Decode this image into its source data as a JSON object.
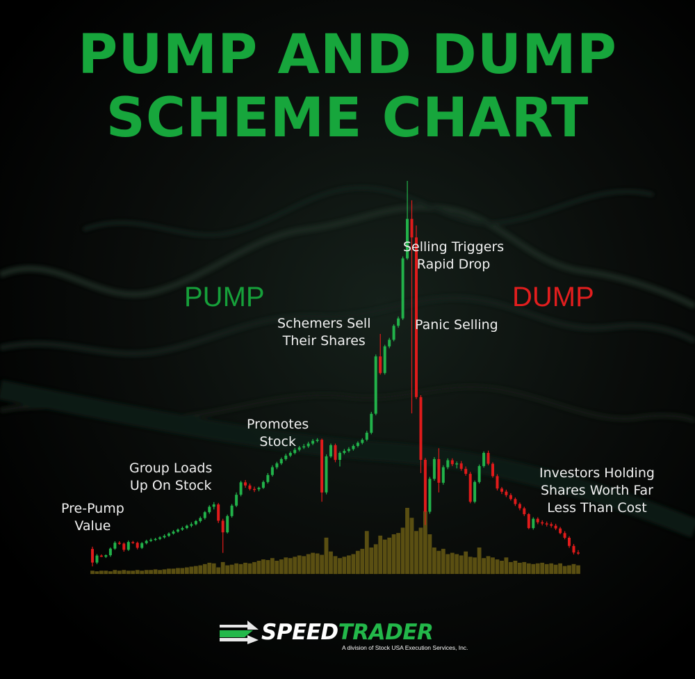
{
  "title_line1": "PUMP AND DUMP",
  "title_line2": "SCHEME CHART",
  "phase_pump": "PUMP",
  "phase_dump": "DUMP",
  "annotations": [
    {
      "line1": "Pre-Pump",
      "line2": "Value"
    },
    {
      "line1": "Group Loads",
      "line2": "Up On Stock"
    },
    {
      "line1": "Promotes",
      "line2": "Stock"
    },
    {
      "line1": "Schemers Sell",
      "line2": "Their Shares"
    },
    {
      "line1": "Selling Triggers",
      "line2": "Rapid Drop"
    },
    {
      "line1": "Panic Selling",
      "line2": ""
    },
    {
      "line1": "Investors Holding",
      "line2": "Shares Worth Far",
      "line3": "Less Than Cost"
    }
  ],
  "logo": {
    "name_part1": "SPEED",
    "name_part2": "TRADER",
    "subtitle": "A division of Stock USA Execution Services, Inc."
  },
  "colors": {
    "title": "#17a63c",
    "pump": "#16a03a",
    "dump": "#e21e1e",
    "up_candle": "#22b24a",
    "down_candle": "#e01b1b",
    "volume": "#5a4f12"
  },
  "chart_data": {
    "type": "candlestick",
    "axes_shown": false,
    "grid": false,
    "note_units": "relative price (0-100) and relative volume (0-100); no axis scale printed",
    "candles": [
      {
        "o": 5.0,
        "h": 5.6,
        "l": 0.5,
        "c": 1.5
      },
      {
        "o": 1.5,
        "h": 3.7,
        "l": 1.1,
        "c": 3.3
      },
      {
        "o": 3.3,
        "h": 3.6,
        "l": 2.9,
        "c": 3.0
      },
      {
        "o": 3.0,
        "h": 3.6,
        "l": 2.7,
        "c": 3.4
      },
      {
        "o": 3.4,
        "h": 5.4,
        "l": 3.0,
        "c": 5.1
      },
      {
        "o": 5.1,
        "h": 7.0,
        "l": 4.8,
        "c": 6.6
      },
      {
        "o": 6.6,
        "h": 7.0,
        "l": 6.1,
        "c": 6.4
      },
      {
        "o": 6.4,
        "h": 6.7,
        "l": 4.3,
        "c": 4.8
      },
      {
        "o": 4.8,
        "h": 7.2,
        "l": 4.5,
        "c": 6.8
      },
      {
        "o": 6.8,
        "h": 7.1,
        "l": 6.3,
        "c": 6.6
      },
      {
        "o": 6.6,
        "h": 6.9,
        "l": 4.9,
        "c": 5.3
      },
      {
        "o": 5.3,
        "h": 6.8,
        "l": 5.0,
        "c": 6.5
      },
      {
        "o": 6.5,
        "h": 7.4,
        "l": 6.2,
        "c": 7.1
      },
      {
        "o": 7.1,
        "h": 7.8,
        "l": 6.8,
        "c": 7.4
      },
      {
        "o": 7.4,
        "h": 7.9,
        "l": 7.1,
        "c": 7.6
      },
      {
        "o": 7.6,
        "h": 8.3,
        "l": 7.3,
        "c": 8.0
      },
      {
        "o": 8.0,
        "h": 8.8,
        "l": 7.7,
        "c": 8.4
      },
      {
        "o": 8.4,
        "h": 9.3,
        "l": 8.1,
        "c": 9.0
      },
      {
        "o": 9.0,
        "h": 9.9,
        "l": 8.7,
        "c": 9.5
      },
      {
        "o": 9.5,
        "h": 10.3,
        "l": 9.2,
        "c": 10.0
      },
      {
        "o": 10.0,
        "h": 10.8,
        "l": 9.7,
        "c": 10.4
      },
      {
        "o": 10.4,
        "h": 11.3,
        "l": 10.1,
        "c": 11.0
      },
      {
        "o": 11.0,
        "h": 11.9,
        "l": 10.6,
        "c": 11.4
      },
      {
        "o": 11.4,
        "h": 12.5,
        "l": 11.1,
        "c": 12.2
      },
      {
        "o": 12.2,
        "h": 13.4,
        "l": 11.8,
        "c": 13.0
      },
      {
        "o": 13.0,
        "h": 14.8,
        "l": 12.6,
        "c": 14.5
      },
      {
        "o": 14.5,
        "h": 16.3,
        "l": 14.1,
        "c": 15.9
      },
      {
        "o": 15.9,
        "h": 17.1,
        "l": 15.2,
        "c": 16.5
      },
      {
        "o": 16.5,
        "h": 16.9,
        "l": 11.7,
        "c": 12.3
      },
      {
        "o": 12.3,
        "h": 12.8,
        "l": 4.0,
        "c": 9.3
      },
      {
        "o": 9.3,
        "h": 13.9,
        "l": 9.0,
        "c": 13.5
      },
      {
        "o": 13.5,
        "h": 16.6,
        "l": 13.1,
        "c": 16.2
      },
      {
        "o": 16.2,
        "h": 19.6,
        "l": 15.8,
        "c": 19.0
      },
      {
        "o": 19.0,
        "h": 22.6,
        "l": 18.6,
        "c": 22.2
      },
      {
        "o": 22.2,
        "h": 22.8,
        "l": 20.8,
        "c": 21.4
      },
      {
        "o": 21.4,
        "h": 21.9,
        "l": 20.1,
        "c": 20.5
      },
      {
        "o": 20.5,
        "h": 21.1,
        "l": 19.7,
        "c": 20.4
      },
      {
        "o": 20.4,
        "h": 21.1,
        "l": 19.9,
        "c": 20.8
      },
      {
        "o": 20.8,
        "h": 22.7,
        "l": 20.5,
        "c": 22.3
      },
      {
        "o": 22.3,
        "h": 24.6,
        "l": 21.9,
        "c": 24.1
      },
      {
        "o": 24.1,
        "h": 26.6,
        "l": 23.7,
        "c": 26.1
      },
      {
        "o": 26.1,
        "h": 27.5,
        "l": 25.6,
        "c": 27.1
      },
      {
        "o": 27.1,
        "h": 28.6,
        "l": 26.7,
        "c": 28.2
      },
      {
        "o": 28.2,
        "h": 29.6,
        "l": 27.8,
        "c": 29.1
      },
      {
        "o": 29.1,
        "h": 30.2,
        "l": 28.7,
        "c": 29.8
      },
      {
        "o": 29.8,
        "h": 31.1,
        "l": 29.4,
        "c": 30.6
      },
      {
        "o": 30.6,
        "h": 31.6,
        "l": 30.2,
        "c": 31.2
      },
      {
        "o": 31.2,
        "h": 32.1,
        "l": 30.8,
        "c": 31.5
      },
      {
        "o": 31.5,
        "h": 32.7,
        "l": 31.1,
        "c": 32.2
      },
      {
        "o": 32.2,
        "h": 33.4,
        "l": 31.8,
        "c": 32.9
      },
      {
        "o": 32.9,
        "h": 33.6,
        "l": 32.5,
        "c": 33.2
      },
      {
        "o": 33.2,
        "h": 33.5,
        "l": 17.2,
        "c": 19.6
      },
      {
        "o": 19.6,
        "h": 29.4,
        "l": 19.1,
        "c": 28.9
      },
      {
        "o": 28.9,
        "h": 32.2,
        "l": 28.5,
        "c": 31.8
      },
      {
        "o": 31.8,
        "h": 32.2,
        "l": 27.4,
        "c": 28.0
      },
      {
        "o": 28.0,
        "h": 30.2,
        "l": 26.3,
        "c": 29.8
      },
      {
        "o": 29.8,
        "h": 30.8,
        "l": 29.4,
        "c": 30.3
      },
      {
        "o": 30.3,
        "h": 31.3,
        "l": 29.9,
        "c": 30.8
      },
      {
        "o": 30.8,
        "h": 32.0,
        "l": 30.4,
        "c": 31.6
      },
      {
        "o": 31.6,
        "h": 32.8,
        "l": 31.2,
        "c": 32.4
      },
      {
        "o": 32.4,
        "h": 33.6,
        "l": 32.0,
        "c": 33.2
      },
      {
        "o": 33.2,
        "h": 35.5,
        "l": 32.8,
        "c": 35.0
      },
      {
        "o": 35.0,
        "h": 40.4,
        "l": 34.6,
        "c": 39.9
      },
      {
        "o": 39.9,
        "h": 55.2,
        "l": 39.5,
        "c": 54.7
      },
      {
        "o": 54.7,
        "h": 60.5,
        "l": 50.0,
        "c": 50.4
      },
      {
        "o": 50.4,
        "h": 57.7,
        "l": 50.0,
        "c": 57.3
      },
      {
        "o": 57.3,
        "h": 59.5,
        "l": 56.8,
        "c": 59.0
      },
      {
        "o": 59.0,
        "h": 63.0,
        "l": 58.6,
        "c": 62.6
      },
      {
        "o": 62.6,
        "h": 65.0,
        "l": 62.1,
        "c": 64.5
      },
      {
        "o": 64.5,
        "h": 80.5,
        "l": 64.1,
        "c": 80.0
      },
      {
        "o": 80.0,
        "h": 100.0,
        "l": 79.6,
        "c": 90.2
      },
      {
        "o": 90.2,
        "h": 95.0,
        "l": 40.0,
        "c": 85.4
      },
      {
        "o": 85.4,
        "h": 88.5,
        "l": 43.7,
        "c": 44.2
      },
      {
        "o": 44.2,
        "h": 44.7,
        "l": 24.6,
        "c": 28.0
      },
      {
        "o": 28.0,
        "h": 28.5,
        "l": 11.2,
        "c": 14.6
      },
      {
        "o": 14.6,
        "h": 23.6,
        "l": 14.1,
        "c": 23.1
      },
      {
        "o": 23.1,
        "h": 28.7,
        "l": 22.6,
        "c": 28.2
      },
      {
        "o": 28.2,
        "h": 31.0,
        "l": 19.6,
        "c": 22.1
      },
      {
        "o": 22.1,
        "h": 26.6,
        "l": 21.6,
        "c": 26.1
      },
      {
        "o": 26.1,
        "h": 28.4,
        "l": 25.6,
        "c": 27.9
      },
      {
        "o": 27.9,
        "h": 28.4,
        "l": 26.4,
        "c": 26.9
      },
      {
        "o": 26.9,
        "h": 27.6,
        "l": 25.8,
        "c": 27.1
      },
      {
        "o": 27.1,
        "h": 27.7,
        "l": 25.2,
        "c": 25.7
      },
      {
        "o": 25.7,
        "h": 26.3,
        "l": 23.9,
        "c": 24.4
      },
      {
        "o": 24.4,
        "h": 24.9,
        "l": 16.8,
        "c": 17.2
      },
      {
        "o": 17.2,
        "h": 22.7,
        "l": 16.8,
        "c": 22.3
      },
      {
        "o": 22.3,
        "h": 26.8,
        "l": 21.9,
        "c": 26.4
      },
      {
        "o": 26.4,
        "h": 30.2,
        "l": 26.0,
        "c": 29.8
      },
      {
        "o": 29.8,
        "h": 30.4,
        "l": 26.6,
        "c": 27.0
      },
      {
        "o": 27.0,
        "h": 27.4,
        "l": 23.4,
        "c": 23.8
      },
      {
        "o": 23.8,
        "h": 24.3,
        "l": 20.1,
        "c": 20.6
      },
      {
        "o": 20.6,
        "h": 21.0,
        "l": 19.2,
        "c": 19.8
      },
      {
        "o": 19.8,
        "h": 20.3,
        "l": 18.4,
        "c": 18.9
      },
      {
        "o": 18.9,
        "h": 19.4,
        "l": 17.5,
        "c": 17.9
      },
      {
        "o": 17.9,
        "h": 18.3,
        "l": 16.1,
        "c": 16.6
      },
      {
        "o": 16.6,
        "h": 17.0,
        "l": 15.0,
        "c": 15.5
      },
      {
        "o": 15.5,
        "h": 15.9,
        "l": 13.5,
        "c": 14.0
      },
      {
        "o": 14.0,
        "h": 14.3,
        "l": 10.1,
        "c": 10.4
      },
      {
        "o": 10.4,
        "h": 13.2,
        "l": 10.0,
        "c": 12.8
      },
      {
        "o": 12.8,
        "h": 13.2,
        "l": 11.4,
        "c": 11.9
      },
      {
        "o": 11.9,
        "h": 12.4,
        "l": 11.1,
        "c": 11.6
      },
      {
        "o": 11.6,
        "h": 12.1,
        "l": 10.8,
        "c": 11.4
      },
      {
        "o": 11.4,
        "h": 11.9,
        "l": 10.5,
        "c": 11.0
      },
      {
        "o": 11.0,
        "h": 11.5,
        "l": 9.9,
        "c": 10.3
      },
      {
        "o": 10.3,
        "h": 10.7,
        "l": 8.8,
        "c": 9.1
      },
      {
        "o": 9.1,
        "h": 9.6,
        "l": 7.5,
        "c": 7.9
      },
      {
        "o": 7.9,
        "h": 8.3,
        "l": 5.3,
        "c": 5.8
      },
      {
        "o": 5.8,
        "h": 6.3,
        "l": 3.6,
        "c": 4.1
      },
      {
        "o": 4.1,
        "h": 4.7,
        "l": 3.5,
        "c": 4.0
      }
    ],
    "volume": [
      5,
      4,
      5,
      5,
      4,
      6,
      5,
      6,
      5,
      5,
      6,
      5,
      6,
      6,
      7,
      6,
      7,
      8,
      8,
      9,
      9,
      10,
      11,
      12,
      13,
      15,
      17,
      16,
      10,
      18,
      13,
      14,
      16,
      15,
      17,
      16,
      18,
      20,
      22,
      21,
      24,
      20,
      22,
      25,
      24,
      26,
      28,
      27,
      30,
      32,
      31,
      29,
      55,
      34,
      27,
      24,
      26,
      28,
      30,
      35,
      38,
      65,
      40,
      45,
      58,
      52,
      55,
      60,
      62,
      70,
      100,
      85,
      65,
      70,
      95,
      60,
      40,
      35,
      38,
      30,
      32,
      30,
      28,
      34,
      26,
      25,
      40,
      24,
      27,
      25,
      22,
      20,
      25,
      18,
      20,
      17,
      18,
      16,
      15,
      16,
      17,
      15,
      16,
      14,
      16,
      12,
      13,
      15,
      13
    ]
  }
}
